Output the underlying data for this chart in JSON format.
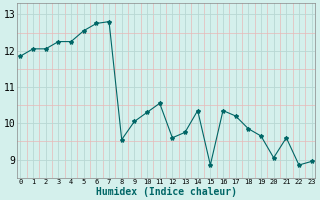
{
  "x": [
    0,
    1,
    2,
    3,
    4,
    5,
    6,
    7,
    8,
    9,
    10,
    11,
    12,
    13,
    14,
    15,
    16,
    17,
    18,
    19,
    20,
    21,
    22,
    23
  ],
  "y": [
    11.85,
    12.05,
    12.05,
    12.25,
    12.25,
    12.55,
    12.75,
    12.8,
    9.55,
    10.05,
    10.3,
    10.55,
    9.6,
    9.75,
    10.35,
    8.85,
    10.35,
    10.2,
    9.85,
    9.65,
    9.05,
    9.6,
    8.85,
    8.95
  ],
  "line_color": "#006666",
  "marker": "*",
  "marker_size": 3,
  "bg_color": "#d4f0ec",
  "xlabel": "Humidex (Indice chaleur)",
  "ylim": [
    8.5,
    13.3
  ],
  "yticks": [
    9,
    10,
    11,
    12,
    13
  ],
  "xticks": [
    0,
    1,
    2,
    3,
    4,
    5,
    6,
    7,
    8,
    9,
    10,
    11,
    12,
    13,
    14,
    15,
    16,
    17,
    18,
    19,
    20,
    21,
    22,
    23
  ],
  "xtick_labels": [
    "0",
    "1",
    "2",
    "3",
    "4",
    "5",
    "6",
    "7",
    "8",
    "9",
    "10",
    "11",
    "12",
    "13",
    "14",
    "15",
    "16",
    "17",
    "18",
    "19",
    "20",
    "21",
    "22",
    "23"
  ],
  "xlim": [
    -0.3,
    23.3
  ],
  "grid_major_color": "#b8d8d4",
  "grid_minor_color": "#e8b8b8",
  "xlabel_fontsize": 7,
  "ytick_fontsize": 7,
  "xtick_fontsize": 5
}
